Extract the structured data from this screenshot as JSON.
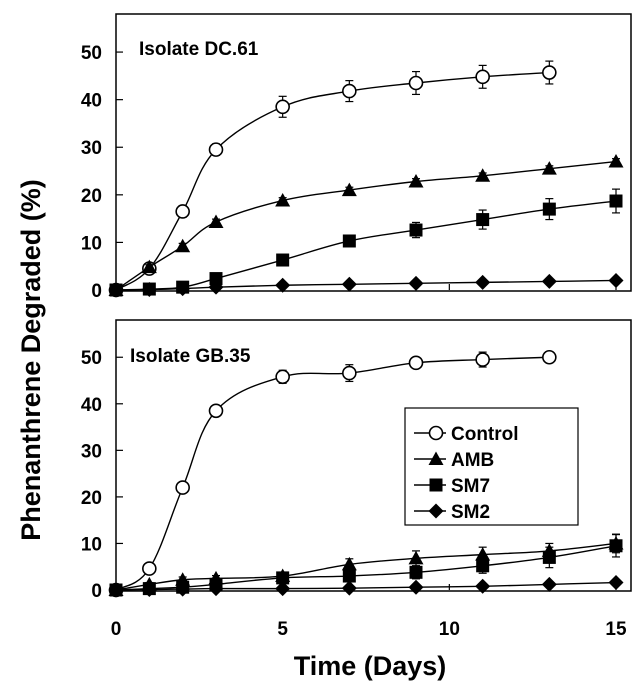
{
  "chart_data": {
    "type": "line",
    "xlabel": "Time (Days)",
    "ylabel": "Phenanthrene Degraded (%)",
    "xlim": [
      0,
      15
    ],
    "ylim": [
      0,
      58
    ],
    "xticks": [
      "0",
      "5",
      "10",
      "15"
    ],
    "yticks": [
      "0",
      "10",
      "20",
      "30",
      "40",
      "50"
    ],
    "grid": false,
    "legend_position": "right, lower panel",
    "legend": [
      "Control",
      "AMB",
      "SM7",
      "SM2"
    ],
    "series_styles": {
      "Control": {
        "marker": "circle-open",
        "color": "#000000"
      },
      "AMB": {
        "marker": "triangle-filled",
        "color": "#000000"
      },
      "SM7": {
        "marker": "square-filled",
        "color": "#000000"
      },
      "SM2": {
        "marker": "diamond-filled",
        "color": "#000000"
      }
    },
    "panels": [
      {
        "title": "Isolate DC.61",
        "series": [
          {
            "name": "Control",
            "x": [
              0,
              1,
              2,
              3,
              5,
              7,
              9,
              11,
              13
            ],
            "y": [
              0,
              4.5,
              16.5,
              29.5,
              38.5,
              41.8,
              43.5,
              44.8,
              45.7
            ],
            "err": [
              0,
              0.8,
              1.2,
              1.2,
              2.2,
              2.2,
              2.4,
              2.4,
              2.4
            ]
          },
          {
            "name": "AMB",
            "x": [
              0,
              1,
              2,
              3,
              5,
              7,
              9,
              11,
              13,
              15
            ],
            "y": [
              0,
              4.8,
              9.2,
              14.3,
              18.8,
              21.0,
              22.8,
              24.0,
              25.5,
              27.0
            ],
            "err": [
              0,
              0.5,
              0.6,
              0.6,
              0.6,
              0.6,
              0.6,
              0.6,
              0.6,
              0.6
            ]
          },
          {
            "name": "SM7",
            "x": [
              0,
              1,
              2,
              3,
              5,
              7,
              9,
              11,
              13,
              15
            ],
            "y": [
              0,
              0.2,
              0.6,
              2.4,
              6.3,
              10.3,
              12.6,
              14.8,
              17.0,
              18.7
            ],
            "err": [
              0,
              0.2,
              0.4,
              0.6,
              0.8,
              1.0,
              1.6,
              2.0,
              2.2,
              2.5
            ]
          },
          {
            "name": "SM2",
            "x": [
              0,
              1,
              2,
              3,
              5,
              7,
              9,
              11,
              13,
              15
            ],
            "y": [
              0,
              0.1,
              0.3,
              0.6,
              1.0,
              1.2,
              1.4,
              1.6,
              1.8,
              2.0
            ],
            "err": [
              0,
              0,
              0,
              0,
              0,
              0,
              0,
              0,
              0,
              0
            ]
          }
        ]
      },
      {
        "title": "Isolate GB.35",
        "series": [
          {
            "name": "Control",
            "x": [
              0,
              1,
              2,
              3,
              5,
              7,
              9,
              11,
              13
            ],
            "y": [
              0,
              4.6,
              22.0,
              38.5,
              45.8,
              46.6,
              48.8,
              49.5,
              50.0
            ],
            "err": [
              0,
              0.8,
              1.0,
              1.0,
              1.4,
              1.8,
              1.0,
              1.6,
              1.2
            ]
          },
          {
            "name": "AMB",
            "x": [
              0,
              1,
              2,
              3,
              5,
              7,
              9,
              11,
              13,
              15
            ],
            "y": [
              0,
              1.2,
              2.2,
              2.5,
              3.0,
              5.5,
              6.8,
              7.6,
              8.4,
              10.0
            ],
            "err": [
              0,
              0.4,
              0.6,
              0.6,
              0.8,
              1.2,
              1.6,
              1.6,
              1.6,
              2.0
            ]
          },
          {
            "name": "SM7",
            "x": [
              0,
              1,
              2,
              3,
              5,
              7,
              9,
              11,
              13,
              15
            ],
            "y": [
              0,
              0.3,
              0.6,
              1.2,
              2.6,
              3.0,
              3.8,
              5.2,
              7.0,
              9.5
            ],
            "err": [
              0,
              0.2,
              0.4,
              0.4,
              0.6,
              1.0,
              1.4,
              1.6,
              2.2,
              2.4
            ]
          },
          {
            "name": "SM2",
            "x": [
              0,
              1,
              2,
              3,
              5,
              7,
              9,
              11,
              13,
              15
            ],
            "y": [
              0,
              0.1,
              0.2,
              0.3,
              0.3,
              0.4,
              0.6,
              0.8,
              1.2,
              1.6
            ],
            "err": [
              0,
              0,
              0,
              0,
              0,
              0,
              0,
              0,
              0,
              0
            ]
          }
        ]
      }
    ]
  }
}
